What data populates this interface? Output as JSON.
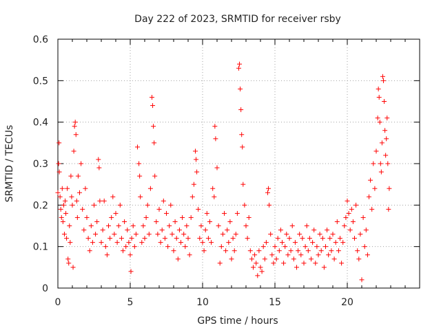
{
  "chart_data": {
    "type": "scatter",
    "title": "Day 222 of 2023, SRMTID for receiver rsby",
    "xlabel": "GPS time / hours",
    "ylabel": "SRMTID / TECUs",
    "xlim": [
      0,
      25
    ],
    "ylim": [
      0,
      0.6
    ],
    "xticks": [
      0,
      5,
      10,
      15,
      20
    ],
    "yticks": [
      0,
      0.1,
      0.2,
      0.3,
      0.4,
      0.5,
      0.6
    ],
    "xtick_labels": [
      "0",
      "5",
      "10",
      "15",
      "20"
    ],
    "ytick_labels": [
      "0",
      "0.1",
      "0.2",
      "0.3",
      "0.4",
      "0.5",
      "0.6"
    ],
    "grid": true,
    "marker": "+",
    "color": "#ff0000",
    "series": [
      {
        "name": "SRMTID",
        "points": [
          [
            0.0,
            0.23
          ],
          [
            0.05,
            0.3
          ],
          [
            0.08,
            0.35
          ],
          [
            0.1,
            0.28
          ],
          [
            0.15,
            0.22
          ],
          [
            0.2,
            0.19
          ],
          [
            0.25,
            0.17
          ],
          [
            0.3,
            0.24
          ],
          [
            0.35,
            0.16
          ],
          [
            0.4,
            0.2
          ],
          [
            0.45,
            0.13
          ],
          [
            0.5,
            0.21
          ],
          [
            0.55,
            0.18
          ],
          [
            0.6,
            0.12
          ],
          [
            0.65,
            0.24
          ],
          [
            0.7,
            0.07
          ],
          [
            0.75,
            0.06
          ],
          [
            0.8,
            0.15
          ],
          [
            0.85,
            0.11
          ],
          [
            0.9,
            0.27
          ],
          [
            0.95,
            0.22
          ],
          [
            1.0,
            0.2
          ],
          [
            1.05,
            0.05
          ],
          [
            1.1,
            0.33
          ],
          [
            1.15,
            0.39
          ],
          [
            1.2,
            0.4
          ],
          [
            1.25,
            0.37
          ],
          [
            1.3,
            0.21
          ],
          [
            1.35,
            0.17
          ],
          [
            1.4,
            0.27
          ],
          [
            1.5,
            0.23
          ],
          [
            1.6,
            0.3
          ],
          [
            1.7,
            0.19
          ],
          [
            1.8,
            0.14
          ],
          [
            1.9,
            0.24
          ],
          [
            2.0,
            0.17
          ],
          [
            2.1,
            0.12
          ],
          [
            2.2,
            0.09
          ],
          [
            2.3,
            0.15
          ],
          [
            2.4,
            0.11
          ],
          [
            2.5,
            0.2
          ],
          [
            2.6,
            0.13
          ],
          [
            2.7,
            0.16
          ],
          [
            2.8,
            0.31
          ],
          [
            2.85,
            0.29
          ],
          [
            2.9,
            0.21
          ],
          [
            3.0,
            0.11
          ],
          [
            3.1,
            0.14
          ],
          [
            3.2,
            0.21
          ],
          [
            3.3,
            0.1
          ],
          [
            3.4,
            0.08
          ],
          [
            3.5,
            0.15
          ],
          [
            3.6,
            0.12
          ],
          [
            3.7,
            0.17
          ],
          [
            3.8,
            0.22
          ],
          [
            3.9,
            0.13
          ],
          [
            4.0,
            0.18
          ],
          [
            4.1,
            0.11
          ],
          [
            4.2,
            0.15
          ],
          [
            4.3,
            0.2
          ],
          [
            4.4,
            0.12
          ],
          [
            4.5,
            0.09
          ],
          [
            4.6,
            0.16
          ],
          [
            4.7,
            0.1
          ],
          [
            4.8,
            0.14
          ],
          [
            4.9,
            0.11
          ],
          [
            5.0,
            0.08
          ],
          [
            5.05,
            0.04
          ],
          [
            5.1,
            0.12
          ],
          [
            5.2,
            0.15
          ],
          [
            5.3,
            0.1
          ],
          [
            5.4,
            0.13
          ],
          [
            5.5,
            0.34
          ],
          [
            5.6,
            0.3
          ],
          [
            5.65,
            0.27
          ],
          [
            5.7,
            0.22
          ],
          [
            5.8,
            0.11
          ],
          [
            5.9,
            0.15
          ],
          [
            6.0,
            0.12
          ],
          [
            6.1,
            0.17
          ],
          [
            6.2,
            0.2
          ],
          [
            6.3,
            0.13
          ],
          [
            6.4,
            0.24
          ],
          [
            6.5,
            0.46
          ],
          [
            6.55,
            0.44
          ],
          [
            6.6,
            0.39
          ],
          [
            6.65,
            0.35
          ],
          [
            6.7,
            0.27
          ],
          [
            6.8,
            0.16
          ],
          [
            6.9,
            0.13
          ],
          [
            7.0,
            0.19
          ],
          [
            7.1,
            0.11
          ],
          [
            7.2,
            0.14
          ],
          [
            7.3,
            0.21
          ],
          [
            7.4,
            0.12
          ],
          [
            7.5,
            0.18
          ],
          [
            7.6,
            0.1
          ],
          [
            7.7,
            0.15
          ],
          [
            7.8,
            0.2
          ],
          [
            7.9,
            0.13
          ],
          [
            8.0,
            0.09
          ],
          [
            8.1,
            0.16
          ],
          [
            8.2,
            0.12
          ],
          [
            8.3,
            0.07
          ],
          [
            8.4,
            0.14
          ],
          [
            8.5,
            0.11
          ],
          [
            8.6,
            0.17
          ],
          [
            8.7,
            0.13
          ],
          [
            8.8,
            0.1
          ],
          [
            8.9,
            0.15
          ],
          [
            9.0,
            0.12
          ],
          [
            9.1,
            0.08
          ],
          [
            9.2,
            0.17
          ],
          [
            9.3,
            0.22
          ],
          [
            9.4,
            0.25
          ],
          [
            9.5,
            0.33
          ],
          [
            9.55,
            0.31
          ],
          [
            9.6,
            0.28
          ],
          [
            9.7,
            0.19
          ],
          [
            9.8,
            0.12
          ],
          [
            9.9,
            0.15
          ],
          [
            10.0,
            0.11
          ],
          [
            10.1,
            0.09
          ],
          [
            10.2,
            0.14
          ],
          [
            10.3,
            0.18
          ],
          [
            10.4,
            0.12
          ],
          [
            10.5,
            0.16
          ],
          [
            10.6,
            0.11
          ],
          [
            10.7,
            0.24
          ],
          [
            10.8,
            0.22
          ],
          [
            10.85,
            0.39
          ],
          [
            10.9,
            0.36
          ],
          [
            11.0,
            0.29
          ],
          [
            11.1,
            0.15
          ],
          [
            11.2,
            0.06
          ],
          [
            11.3,
            0.1
          ],
          [
            11.4,
            0.13
          ],
          [
            11.5,
            0.18
          ],
          [
            11.6,
            0.09
          ],
          [
            11.7,
            0.14
          ],
          [
            11.8,
            0.11
          ],
          [
            11.9,
            0.16
          ],
          [
            12.0,
            0.07
          ],
          [
            12.1,
            0.12
          ],
          [
            12.2,
            0.09
          ],
          [
            12.3,
            0.13
          ],
          [
            12.4,
            0.18
          ],
          [
            12.5,
            0.53
          ],
          [
            12.55,
            0.54
          ],
          [
            12.6,
            0.48
          ],
          [
            12.65,
            0.43
          ],
          [
            12.7,
            0.37
          ],
          [
            12.75,
            0.34
          ],
          [
            12.8,
            0.25
          ],
          [
            12.9,
            0.2
          ],
          [
            13.0,
            0.15
          ],
          [
            13.1,
            0.12
          ],
          [
            13.2,
            0.17
          ],
          [
            13.3,
            0.09
          ],
          [
            13.4,
            0.07
          ],
          [
            13.5,
            0.05
          ],
          [
            13.6,
            0.08
          ],
          [
            13.7,
            0.06
          ],
          [
            13.8,
            0.03
          ],
          [
            13.9,
            0.09
          ],
          [
            14.0,
            0.05
          ],
          [
            14.1,
            0.04
          ],
          [
            14.2,
            0.1
          ],
          [
            14.3,
            0.07
          ],
          [
            14.4,
            0.11
          ],
          [
            14.5,
            0.23
          ],
          [
            14.55,
            0.24
          ],
          [
            14.6,
            0.2
          ],
          [
            14.7,
            0.13
          ],
          [
            14.8,
            0.08
          ],
          [
            14.9,
            0.06
          ],
          [
            15.0,
            0.1
          ],
          [
            15.1,
            0.07
          ],
          [
            15.2,
            0.12
          ],
          [
            15.3,
            0.09
          ],
          [
            15.4,
            0.14
          ],
          [
            15.5,
            0.11
          ],
          [
            15.6,
            0.06
          ],
          [
            15.7,
            0.1
          ],
          [
            15.8,
            0.13
          ],
          [
            15.9,
            0.08
          ],
          [
            16.0,
            0.12
          ],
          [
            16.1,
            0.09
          ],
          [
            16.2,
            0.15
          ],
          [
            16.3,
            0.07
          ],
          [
            16.4,
            0.11
          ],
          [
            16.5,
            0.05
          ],
          [
            16.6,
            0.09
          ],
          [
            16.7,
            0.13
          ],
          [
            16.8,
            0.08
          ],
          [
            16.9,
            0.12
          ],
          [
            17.0,
            0.06
          ],
          [
            17.1,
            0.1
          ],
          [
            17.2,
            0.15
          ],
          [
            17.3,
            0.09
          ],
          [
            17.4,
            0.12
          ],
          [
            17.5,
            0.07
          ],
          [
            17.6,
            0.11
          ],
          [
            17.7,
            0.14
          ],
          [
            17.8,
            0.06
          ],
          [
            17.9,
            0.1
          ],
          [
            18.0,
            0.08
          ],
          [
            18.1,
            0.13
          ],
          [
            18.2,
            0.09
          ],
          [
            18.3,
            0.12
          ],
          [
            18.4,
            0.05
          ],
          [
            18.5,
            0.1
          ],
          [
            18.6,
            0.14
          ],
          [
            18.7,
            0.08
          ],
          [
            18.8,
            0.12
          ],
          [
            18.9,
            0.09
          ],
          [
            19.0,
            0.13
          ],
          [
            19.1,
            0.07
          ],
          [
            19.2,
            0.11
          ],
          [
            19.3,
            0.16
          ],
          [
            19.4,
            0.09
          ],
          [
            19.5,
            0.12
          ],
          [
            19.6,
            0.06
          ],
          [
            19.7,
            0.11
          ],
          [
            19.8,
            0.15
          ],
          [
            19.9,
            0.17
          ],
          [
            20.0,
            0.21
          ],
          [
            20.1,
            0.18
          ],
          [
            20.2,
            0.14
          ],
          [
            20.3,
            0.19
          ],
          [
            20.4,
            0.16
          ],
          [
            20.5,
            0.12
          ],
          [
            20.6,
            0.2
          ],
          [
            20.7,
            0.09
          ],
          [
            20.8,
            0.07
          ],
          [
            20.9,
            0.13
          ],
          [
            21.0,
            0.02
          ],
          [
            21.1,
            0.17
          ],
          [
            21.2,
            0.1
          ],
          [
            21.3,
            0.14
          ],
          [
            21.4,
            0.08
          ],
          [
            21.5,
            0.22
          ],
          [
            21.6,
            0.26
          ],
          [
            21.7,
            0.19
          ],
          [
            21.8,
            0.3
          ],
          [
            21.9,
            0.24
          ],
          [
            22.0,
            0.33
          ],
          [
            22.1,
            0.41
          ],
          [
            22.15,
            0.48
          ],
          [
            22.2,
            0.46
          ],
          [
            22.25,
            0.4
          ],
          [
            22.3,
            0.3
          ],
          [
            22.35,
            0.28
          ],
          [
            22.4,
            0.35
          ],
          [
            22.45,
            0.51
          ],
          [
            22.5,
            0.5
          ],
          [
            22.55,
            0.45
          ],
          [
            22.6,
            0.38
          ],
          [
            22.65,
            0.32
          ],
          [
            22.7,
            0.36
          ],
          [
            22.75,
            0.41
          ],
          [
            22.8,
            0.3
          ],
          [
            22.85,
            0.19
          ],
          [
            22.9,
            0.24
          ]
        ]
      }
    ]
  }
}
